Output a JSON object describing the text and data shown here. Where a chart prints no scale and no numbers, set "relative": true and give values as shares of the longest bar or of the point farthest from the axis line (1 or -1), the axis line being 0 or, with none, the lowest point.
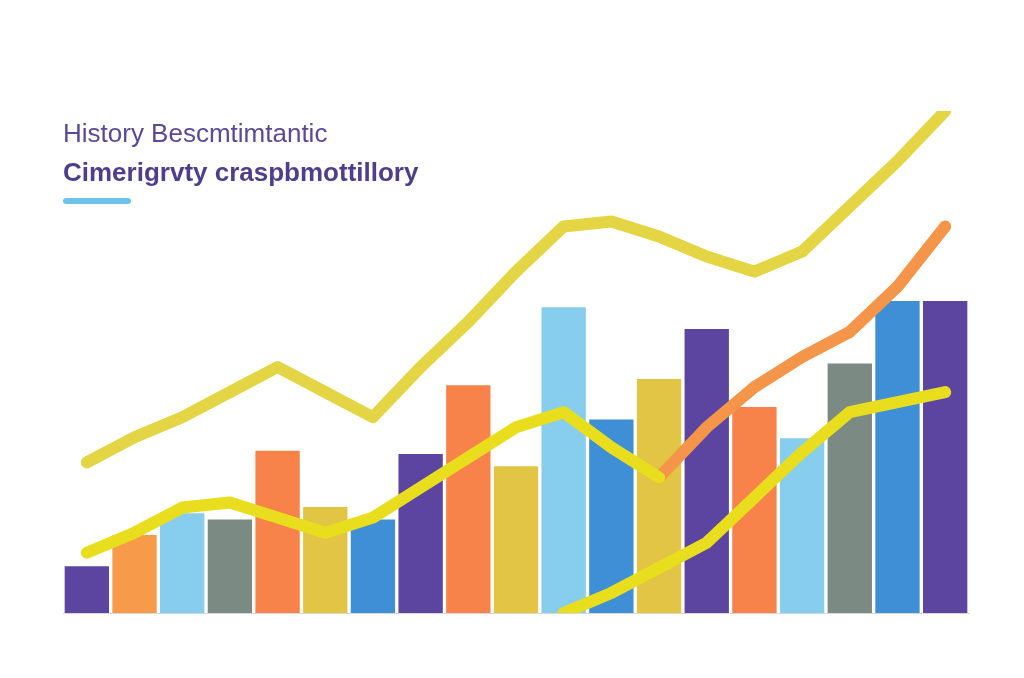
{
  "chart_data": [
    {
      "type": "bar",
      "title": "History Bescmtimtantic",
      "subtitle": "Cimerigrvty craspbmottillory",
      "relative": true,
      "categories": [
        null,
        null,
        null,
        null,
        null,
        null,
        null,
        null,
        null,
        null,
        null,
        null,
        null,
        null,
        null,
        null,
        null,
        null,
        null
      ],
      "colors": [
        "#5b45a0",
        "#f79a4a",
        "#86cdee",
        "#7c8a84",
        "#f8834a",
        "#e2c544",
        "#3f8fd6",
        "#5b45a0",
        "#f8834a",
        "#e2c544",
        "#86cdee",
        "#3f8fd6",
        "#e2c544",
        "#5b45a0",
        "#f8834a",
        "#86cdee",
        "#7c8a84",
        "#3f8fd6",
        "#5b45a0"
      ],
      "values": [
        0.15,
        0.25,
        0.32,
        0.3,
        0.52,
        0.34,
        0.3,
        0.51,
        0.73,
        0.47,
        0.98,
        0.62,
        0.75,
        0.91,
        0.66,
        0.56,
        0.8,
        1,
        1
      ]
    },
    {
      "type": "line",
      "relative": true,
      "categories": [
        null,
        null,
        null,
        null,
        null,
        null,
        null,
        null,
        null,
        null,
        null,
        null,
        null,
        null,
        null,
        null,
        null,
        null,
        null
      ],
      "series": [
        {
          "color": "#e3d544",
          "values": [
            0.3,
            0.35,
            0.39,
            0.44,
            0.49,
            0.44,
            0.39,
            0.49,
            0.58,
            0.68,
            0.77,
            0.78,
            0.75,
            0.71,
            0.68,
            0.72,
            0.81,
            0.9,
            1.0
          ]
        },
        {
          "color": "#e8de1e",
          "values": [
            0.12,
            0.16,
            0.21,
            0.22,
            0.19,
            0.16,
            0.19,
            0.25,
            0.31,
            0.37,
            0.4,
            0.33,
            0.27,
            null,
            null,
            null,
            null,
            null,
            null
          ]
        },
        {
          "color": "#f5954a",
          "values": [
            null,
            null,
            null,
            null,
            null,
            null,
            null,
            null,
            null,
            null,
            null,
            null,
            0.27,
            0.37,
            0.45,
            0.51,
            0.56,
            0.65,
            0.77
          ]
        },
        {
          "color": "#e8de1e",
          "values": [
            null,
            null,
            null,
            null,
            null,
            null,
            null,
            null,
            null,
            null,
            0,
            0.04,
            0.09,
            0.14,
            0.23,
            0.32,
            0.4,
            0.42,
            0.44
          ]
        }
      ]
    }
  ]
}
